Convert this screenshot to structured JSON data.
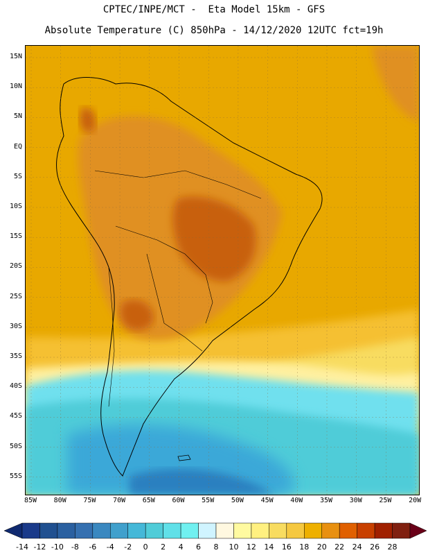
{
  "header": {
    "title_line1": "CPTEC/INPE/MCT -  Eta Model 15km - GFS",
    "title_line2": "Absolute Temperature (C) 850hPa - 14/12/2020 12UTC fct=19h"
  },
  "map": {
    "region": "South America",
    "lat_ticks": [
      "15N",
      "10N",
      "5N",
      "EQ",
      "5S",
      "10S",
      "15S",
      "20S",
      "25S",
      "30S",
      "35S",
      "40S",
      "45S",
      "50S",
      "55S"
    ],
    "lon_ticks": [
      "85W",
      "80W",
      "75W",
      "70W",
      "65W",
      "60W",
      "55W",
      "50W",
      "45W",
      "40W",
      "35W",
      "30W",
      "25W",
      "20W"
    ],
    "zones": [
      {
        "name": "tropical-ocean",
        "value_range": [
          18,
          20
        ],
        "color": "#e8a800"
      },
      {
        "name": "continent-interior",
        "value_range": [
          20,
          22
        ],
        "color": "#e09020"
      },
      {
        "name": "hot-core",
        "value_range": [
          22,
          24
        ],
        "color": "#c86010"
      },
      {
        "name": "mid-latitude",
        "value_range": [
          14,
          18
        ],
        "color": "#f5c030"
      },
      {
        "name": "transition",
        "value_range": [
          6,
          12
        ],
        "color": "#fff0a0"
      },
      {
        "name": "southern-ocean",
        "value_range": [
          0,
          4
        ],
        "color": "#50d0e0"
      },
      {
        "name": "cold-core",
        "value_range": [
          -2,
          0
        ],
        "color": "#3aa8d8"
      }
    ]
  },
  "colorbar": {
    "labels": [
      "-14",
      "-12",
      "-10",
      "-8",
      "-6",
      "-4",
      "-2",
      "0",
      "2",
      "4",
      "6",
      "8",
      "10",
      "12",
      "14",
      "16",
      "18",
      "20",
      "22",
      "24",
      "26",
      "28"
    ],
    "colors": [
      "#1a3a8a",
      "#205090",
      "#2a60a0",
      "#3570b0",
      "#3a88c0",
      "#40a0cc",
      "#45b8d8",
      "#50ccd8",
      "#60e0e8",
      "#70f0f0",
      "#d0f4ff",
      "#fff8e0",
      "#fffaa0",
      "#fff080",
      "#f8dc60",
      "#f5c840",
      "#eeb000",
      "#e89010",
      "#e06000",
      "#c84000",
      "#a02000",
      "#802010"
    ],
    "under_color": "#102a70",
    "over_color": "#6a0018"
  }
}
